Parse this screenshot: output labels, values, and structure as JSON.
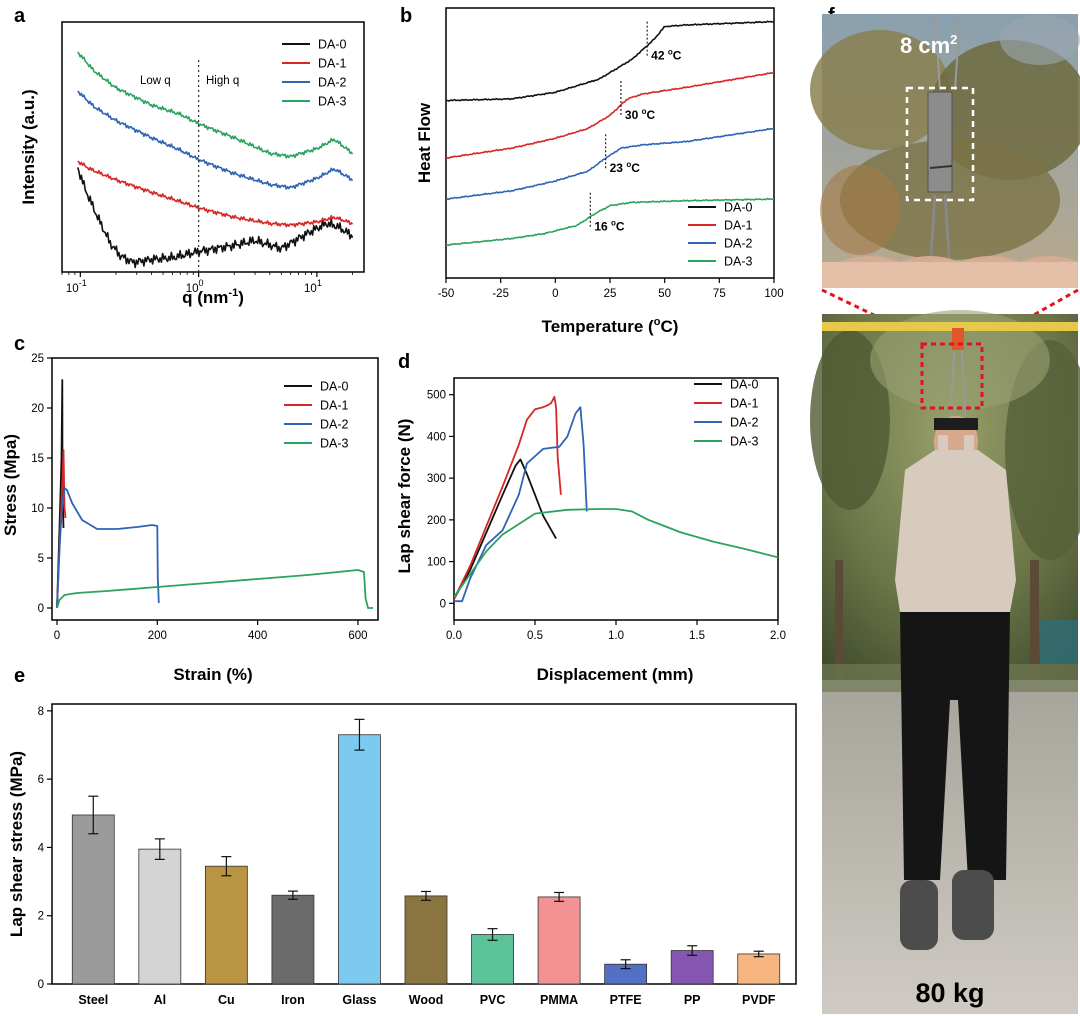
{
  "colors": {
    "DA-0": "#111111",
    "DA-1": "#d62728",
    "DA-2": "#2f63b5",
    "DA-3": "#2ca25f",
    "dashed_box": "#ffffff",
    "zoom_box": "#e0131e"
  },
  "chart_data": [
    {
      "panel": "a",
      "type": "line",
      "xlabel": "q (nm",
      "xlabel_sup": "-1",
      "xlabel_close": ")",
      "ylabel": "Intensity (a.u.)",
      "xscale": "log",
      "xlim": [
        0.07,
        25
      ],
      "xticks": [
        {
          "base": "10",
          "exp": "-1"
        },
        {
          "base": "10",
          "exp": "0"
        },
        {
          "base": "10",
          "exp": "1"
        }
      ],
      "annotations": {
        "low": "Low q",
        "high": "High q",
        "divider_q": 1
      },
      "series": [
        {
          "name": "DA-0",
          "x": [
            0.095,
            0.11,
            0.14,
            0.18,
            0.22,
            0.28,
            0.4,
            0.6,
            1,
            2,
            3,
            5,
            8,
            12,
            15,
            20
          ],
          "y": [
            62,
            48,
            30,
            13,
            5,
            1,
            3,
            4,
            8,
            12,
            15,
            10,
            19,
            26,
            24,
            18
          ]
        },
        {
          "name": "DA-1",
          "x": [
            0.095,
            0.12,
            0.2,
            0.4,
            0.7,
            1,
            2,
            4,
            6,
            10,
            14,
            20
          ],
          "y": [
            66,
            61,
            54,
            46,
            40,
            36,
            30,
            26,
            25,
            27,
            30,
            26
          ]
        },
        {
          "name": "DA-2",
          "x": [
            0.095,
            0.13,
            0.2,
            0.4,
            0.7,
            1,
            2,
            4,
            6,
            10,
            14,
            20
          ],
          "y": [
            111,
            101,
            92,
            81,
            73,
            67,
            58,
            51,
            49,
            55,
            61,
            54
          ]
        },
        {
          "name": "DA-3",
          "x": [
            0.095,
            0.13,
            0.2,
            0.4,
            0.7,
            1,
            2,
            4,
            6,
            10,
            14,
            20
          ],
          "y": [
            136,
            124,
            113,
            102,
            96,
            90,
            81,
            71,
            69,
            74,
            80,
            71
          ]
        }
      ]
    },
    {
      "panel": "b",
      "type": "line",
      "xlabel": "Temperature (",
      "xlabel_sup": "o",
      "xlabel_close": "C)",
      "ylabel": "Heat Flow",
      "xlim": [
        -50,
        100
      ],
      "xticks": [
        -50,
        -25,
        0,
        25,
        50,
        75,
        100
      ],
      "transitions": [
        {
          "name": "DA-0",
          "label": "42 ",
          "label_sup": "o",
          "label_unit": "C",
          "t": 42
        },
        {
          "name": "DA-1",
          "label": "30 ",
          "label_sup": "o",
          "label_unit": "C",
          "t": 30
        },
        {
          "name": "DA-2",
          "label": "23 ",
          "label_sup": "o",
          "label_unit": "C",
          "t": 23
        },
        {
          "name": "DA-3",
          "label": "16 ",
          "label_sup": "o",
          "label_unit": "C",
          "t": 16
        }
      ],
      "series": [
        {
          "name": "DA-0",
          "x": [
            -50,
            -20,
            0,
            20,
            35,
            45,
            50,
            60,
            100
          ],
          "y": [
            91,
            92,
            96,
            104,
            116,
            128,
            136,
            137,
            139
          ]
        },
        {
          "name": "DA-1",
          "x": [
            -50,
            -20,
            0,
            15,
            25,
            33,
            40,
            60,
            100
          ],
          "y": [
            56,
            62,
            68,
            74,
            82,
            92,
            95,
            99,
            108
          ]
        },
        {
          "name": "DA-2",
          "x": [
            -50,
            -20,
            0,
            15,
            22,
            30,
            40,
            60,
            100
          ],
          "y": [
            31,
            36,
            42,
            48,
            55,
            62,
            64,
            66,
            74
          ]
        },
        {
          "name": "DA-3",
          "x": [
            -50,
            -20,
            -5,
            10,
            18,
            25,
            35,
            60,
            100
          ],
          "y": [
            3,
            7,
            10,
            15,
            22,
            27,
            29,
            30,
            31
          ]
        }
      ]
    },
    {
      "panel": "c",
      "type": "line",
      "xlabel": "Strain (%)",
      "ylabel": "Stress (Mpa)",
      "xlim": [
        -10,
        640
      ],
      "ylim": [
        -1.2,
        25
      ],
      "xticks": [
        0,
        200,
        400,
        600
      ],
      "yticks": [
        0,
        5,
        10,
        15,
        20,
        25
      ],
      "series": [
        {
          "name": "DA-0",
          "x": [
            0,
            5,
            9,
            10.5,
            11,
            13
          ],
          "y": [
            0,
            8,
            15,
            22.8,
            12,
            8
          ]
        },
        {
          "name": "DA-1",
          "x": [
            0,
            6,
            11,
            13,
            15,
            17
          ],
          "y": [
            0,
            7,
            13,
            15.8,
            10,
            9
          ]
        },
        {
          "name": "DA-2",
          "x": [
            0,
            5,
            10,
            15,
            20,
            30,
            50,
            80,
            120,
            160,
            190,
            200,
            201,
            203
          ],
          "y": [
            0,
            6,
            10,
            12,
            11.8,
            10.5,
            8.8,
            7.9,
            7.9,
            8.1,
            8.3,
            8.2,
            3,
            0.5
          ]
        },
        {
          "name": "DA-3",
          "x": [
            0,
            5,
            15,
            40,
            100,
            200,
            300,
            400,
            500,
            580,
            600,
            612,
            615,
            620,
            630
          ],
          "y": [
            0,
            0.8,
            1.3,
            1.5,
            1.7,
            2.1,
            2.5,
            2.9,
            3.3,
            3.7,
            3.8,
            3.6,
            1,
            0,
            0
          ]
        }
      ]
    },
    {
      "panel": "d",
      "type": "line",
      "xlabel": "Displacement (mm)",
      "ylabel": "Lap shear force (N)",
      "xlim": [
        0,
        2.0
      ],
      "ylim": [
        -40,
        540
      ],
      "xticks": [
        "0.0",
        "0.5",
        "1.0",
        "1.5",
        "2.0"
      ],
      "yticks": [
        0,
        100,
        200,
        300,
        400,
        500
      ],
      "series": [
        {
          "name": "DA-0",
          "x": [
            0,
            0.1,
            0.2,
            0.3,
            0.38,
            0.41,
            0.45,
            0.5,
            0.55,
            0.63
          ],
          "y": [
            10,
            80,
            170,
            260,
            330,
            345,
            310,
            260,
            210,
            155
          ]
        },
        {
          "name": "DA-1",
          "x": [
            0,
            0.1,
            0.2,
            0.3,
            0.4,
            0.45,
            0.5,
            0.55,
            0.58,
            0.6,
            0.62,
            0.63,
            0.64,
            0.66
          ],
          "y": [
            10,
            90,
            185,
            280,
            380,
            440,
            465,
            470,
            475,
            480,
            495,
            470,
            350,
            260
          ]
        },
        {
          "name": "DA-2",
          "x": [
            0,
            0.05,
            0.1,
            0.2,
            0.3,
            0.4,
            0.45,
            0.55,
            0.65,
            0.7,
            0.75,
            0.78,
            0.8,
            0.82
          ],
          "y": [
            5,
            5,
            60,
            140,
            175,
            260,
            335,
            370,
            375,
            400,
            455,
            470,
            380,
            220
          ]
        },
        {
          "name": "DA-3",
          "x": [
            0,
            0.1,
            0.2,
            0.3,
            0.5,
            0.7,
            0.9,
            1.0,
            1.1,
            1.2,
            1.4,
            1.6,
            1.8,
            2.0
          ],
          "y": [
            15,
            70,
            125,
            165,
            215,
            224,
            226,
            226,
            220,
            200,
            170,
            148,
            130,
            110
          ]
        }
      ]
    },
    {
      "panel": "e",
      "type": "bar",
      "ylabel": "Lap shear stress (MPa)",
      "ylim": [
        0,
        8.2
      ],
      "yticks": [
        0,
        2,
        4,
        6,
        8
      ],
      "categories": [
        "Steel",
        "Al",
        "Cu",
        "Iron",
        "Glass",
        "Wood",
        "PVC",
        "PMMA",
        "PTFE",
        "PP",
        "PVDF"
      ],
      "values": [
        4.95,
        3.95,
        3.45,
        2.6,
        7.3,
        2.58,
        1.45,
        2.55,
        0.58,
        0.98,
        0.88
      ],
      "errors": [
        0.55,
        0.3,
        0.28,
        0.12,
        0.45,
        0.13,
        0.17,
        0.13,
        0.13,
        0.14,
        0.08
      ],
      "bar_colors": [
        "#9b9b9b",
        "#d4d4d4",
        "#b99442",
        "#6b6b6b",
        "#7ccaf0",
        "#8a7440",
        "#5cc29a",
        "#f39292",
        "#5470c4",
        "#8456b1",
        "#f7b580"
      ]
    }
  ],
  "panels": {
    "a": "a",
    "b": "b",
    "c": "c",
    "d": "d",
    "e": "e",
    "f": "f"
  },
  "photo": {
    "area_label": "8 cm",
    "area_sup": "2",
    "weight_label": "80 kg"
  },
  "legend": [
    "DA-0",
    "DA-1",
    "DA-2",
    "DA-3"
  ]
}
